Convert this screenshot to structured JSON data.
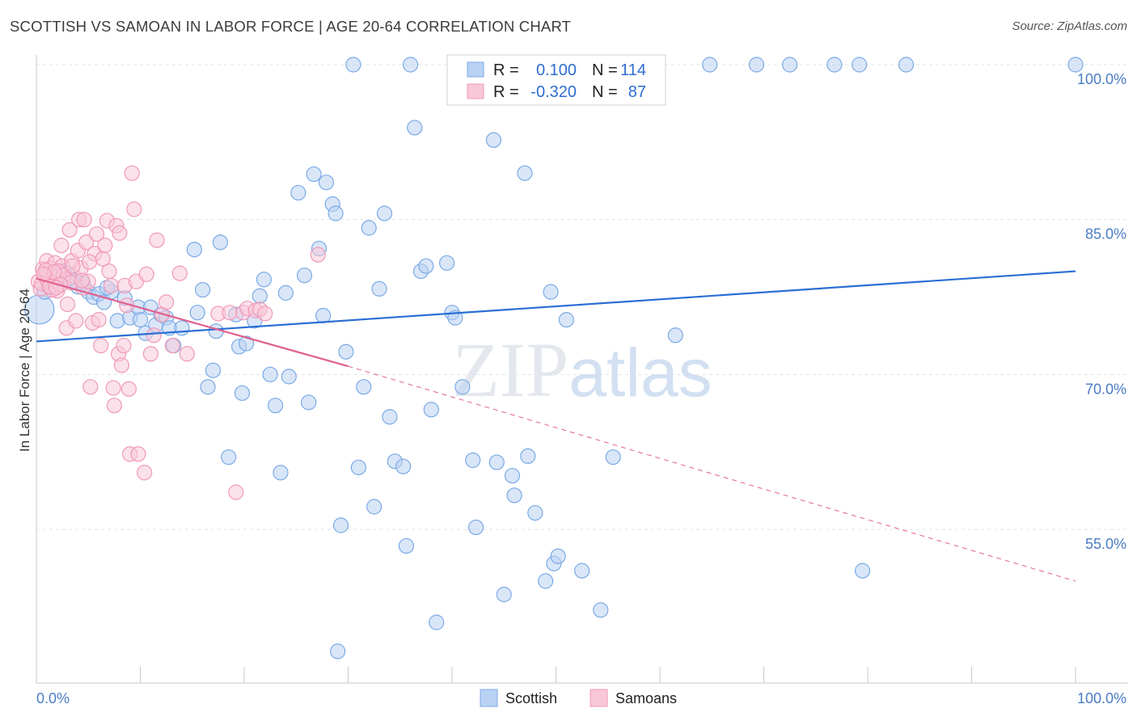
{
  "chart_data": {
    "type": "scatter",
    "title": "SCOTTISH VS SAMOAN IN LABOR FORCE | AGE 20-64 CORRELATION CHART",
    "source": "Source: ZipAtlas.com",
    "xlabel": "",
    "ylabel": "In Labor Force | Age 20-64",
    "xlim": [
      0,
      100
    ],
    "ylim": [
      42,
      102
    ],
    "x_tick_labels": [
      "0.0%",
      "100.0%"
    ],
    "y_ticks": [
      {
        "value": 100,
        "label": "100.0%"
      },
      {
        "value": 85,
        "label": "85.0%"
      },
      {
        "value": 70,
        "label": "70.0%"
      },
      {
        "value": 55,
        "label": "55.0%"
      }
    ],
    "watermark": "ZIPatlas",
    "legend": {
      "rows": [
        {
          "series": "Scottish",
          "r_label": "R =",
          "r_value": "0.100",
          "n_label": "N =",
          "n_value": "114"
        },
        {
          "series": "Samoans",
          "r_label": "R =",
          "r_value": "-0.320",
          "n_label": "N =",
          "n_value": "87"
        }
      ]
    },
    "series": [
      {
        "name": "Scottish",
        "color": "#7aaae6",
        "fill": "#b9d1f2",
        "line_color": "#2a6fd4",
        "trend": {
          "x0": 0,
          "y0": 73.2,
          "x1": 100,
          "y1": 80.0
        },
        "points": [
          [
            0.3,
            76.3
          ],
          [
            0.8,
            78.0
          ],
          [
            1.2,
            78.5
          ],
          [
            1.5,
            79.2
          ],
          [
            2.0,
            79.5
          ],
          [
            2.5,
            80.0
          ],
          [
            3.0,
            79.8
          ],
          [
            3.5,
            79.0
          ],
          [
            4.0,
            78.5
          ],
          [
            4.5,
            78.8
          ],
          [
            5.0,
            78.0
          ],
          [
            5.5,
            77.5
          ],
          [
            6.0,
            77.8
          ],
          [
            6.5,
            77.0
          ],
          [
            7.2,
            78.0
          ],
          [
            7.8,
            75.2
          ],
          [
            8.5,
            77.4
          ],
          [
            9.0,
            75.5
          ],
          [
            9.8,
            76.5
          ],
          [
            10.0,
            75.3
          ],
          [
            10.5,
            74.0
          ],
          [
            11.0,
            76.5
          ],
          [
            11.5,
            74.8
          ],
          [
            12.0,
            75.8
          ],
          [
            12.5,
            75.5
          ],
          [
            12.8,
            74.5
          ],
          [
            13.2,
            72.8
          ],
          [
            14.0,
            74.5
          ],
          [
            15.2,
            82.1
          ],
          [
            15.5,
            76.0
          ],
          [
            16.0,
            78.2
          ],
          [
            16.5,
            68.8
          ],
          [
            17.0,
            70.4
          ],
          [
            17.3,
            74.2
          ],
          [
            17.7,
            82.8
          ],
          [
            18.5,
            62.0
          ],
          [
            19.2,
            75.8
          ],
          [
            19.5,
            72.7
          ],
          [
            19.8,
            68.2
          ],
          [
            20.2,
            73.0
          ],
          [
            21.0,
            75.2
          ],
          [
            21.5,
            77.6
          ],
          [
            21.9,
            79.2
          ],
          [
            22.5,
            70.0
          ],
          [
            23.0,
            67.0
          ],
          [
            23.5,
            60.5
          ],
          [
            24.0,
            77.9
          ],
          [
            24.3,
            69.8
          ],
          [
            25.2,
            87.6
          ],
          [
            25.8,
            79.6
          ],
          [
            26.2,
            67.3
          ],
          [
            26.7,
            89.4
          ],
          [
            27.2,
            82.2
          ],
          [
            27.6,
            75.7
          ],
          [
            27.9,
            88.6
          ],
          [
            28.5,
            86.5
          ],
          [
            28.8,
            85.6
          ],
          [
            29.0,
            43.2
          ],
          [
            29.3,
            55.4
          ],
          [
            29.8,
            72.2
          ],
          [
            30.5,
            100.0
          ],
          [
            31.0,
            61.0
          ],
          [
            31.5,
            68.8
          ],
          [
            32.0,
            84.2
          ],
          [
            32.5,
            57.2
          ],
          [
            33.0,
            78.3
          ],
          [
            33.5,
            85.6
          ],
          [
            34.0,
            65.9
          ],
          [
            34.5,
            61.6
          ],
          [
            35.3,
            61.1
          ],
          [
            35.6,
            53.4
          ],
          [
            36.0,
            100.0
          ],
          [
            36.4,
            93.9
          ],
          [
            37.0,
            80.0
          ],
          [
            37.5,
            80.5
          ],
          [
            38.0,
            66.6
          ],
          [
            38.5,
            46.0
          ],
          [
            39.5,
            80.8
          ],
          [
            40.0,
            76.0
          ],
          [
            40.3,
            75.5
          ],
          [
            41.0,
            68.8
          ],
          [
            42.0,
            61.7
          ],
          [
            42.3,
            55.2
          ],
          [
            44.0,
            92.7
          ],
          [
            44.3,
            61.5
          ],
          [
            45.0,
            48.7
          ],
          [
            45.8,
            60.2
          ],
          [
            46.0,
            58.3
          ],
          [
            47.0,
            89.5
          ],
          [
            47.3,
            62.1
          ],
          [
            48.0,
            56.6
          ],
          [
            49.0,
            50.0
          ],
          [
            49.5,
            78.0
          ],
          [
            49.8,
            51.7
          ],
          [
            50.2,
            52.4
          ],
          [
            51.0,
            75.3
          ],
          [
            52.5,
            51.0
          ],
          [
            52.7,
            100.0
          ],
          [
            54.3,
            47.2
          ],
          [
            55.0,
            100.0
          ],
          [
            55.5,
            62.0
          ],
          [
            57.8,
            100.0
          ],
          [
            61.5,
            73.8
          ],
          [
            64.8,
            100.0
          ],
          [
            69.3,
            100.0
          ],
          [
            72.5,
            100.0
          ],
          [
            76.8,
            100.0
          ],
          [
            79.2,
            100.0
          ],
          [
            79.5,
            51.0
          ],
          [
            83.7,
            100.0
          ],
          [
            100.0,
            100.0
          ],
          [
            1.8,
            78.9
          ],
          [
            3.2,
            79.3
          ],
          [
            6.8,
            78.4
          ]
        ]
      },
      {
        "name": "Samoans",
        "color": "#f099b8",
        "fill": "#f8c8d8",
        "line_color": "#e0608e",
        "trend": {
          "x0": 0,
          "y0": 79.3,
          "x1": 30,
          "y1": 70.8
        },
        "trend_dashed": {
          "x0": 30,
          "y0": 70.8,
          "x1": 100,
          "y1": 50.0
        },
        "points": [
          [
            0.2,
            79.0
          ],
          [
            0.4,
            78.3
          ],
          [
            0.6,
            80.2
          ],
          [
            0.8,
            79.5
          ],
          [
            1.0,
            81.0
          ],
          [
            1.2,
            78.6
          ],
          [
            1.4,
            80.3
          ],
          [
            1.6,
            79.4
          ],
          [
            1.8,
            80.8
          ],
          [
            2.0,
            78.1
          ],
          [
            2.2,
            79.8
          ],
          [
            2.4,
            82.5
          ],
          [
            2.5,
            80.5
          ],
          [
            2.7,
            79.2
          ],
          [
            2.9,
            74.5
          ],
          [
            3.0,
            76.8
          ],
          [
            3.2,
            84.0
          ],
          [
            3.4,
            81.0
          ],
          [
            3.6,
            79.5
          ],
          [
            3.8,
            75.2
          ],
          [
            4.0,
            82.0
          ],
          [
            4.1,
            85.0
          ],
          [
            4.3,
            80.3
          ],
          [
            4.5,
            78.4
          ],
          [
            4.6,
            85.0
          ],
          [
            4.8,
            82.8
          ],
          [
            5.0,
            79.0
          ],
          [
            5.2,
            68.8
          ],
          [
            5.4,
            75.0
          ],
          [
            5.6,
            81.7
          ],
          [
            5.8,
            83.6
          ],
          [
            6.0,
            75.3
          ],
          [
            6.2,
            72.8
          ],
          [
            6.4,
            81.2
          ],
          [
            6.6,
            82.5
          ],
          [
            6.8,
            84.9
          ],
          [
            7.0,
            80.0
          ],
          [
            7.2,
            78.6
          ],
          [
            7.4,
            68.7
          ],
          [
            7.5,
            67.0
          ],
          [
            7.7,
            84.4
          ],
          [
            7.9,
            72.0
          ],
          [
            8.0,
            83.7
          ],
          [
            8.2,
            70.9
          ],
          [
            8.4,
            72.8
          ],
          [
            8.5,
            78.6
          ],
          [
            8.7,
            76.7
          ],
          [
            8.9,
            68.6
          ],
          [
            9.0,
            62.3
          ],
          [
            9.2,
            89.5
          ],
          [
            9.4,
            86.0
          ],
          [
            9.6,
            79.0
          ],
          [
            9.8,
            62.3
          ],
          [
            10.4,
            60.5
          ],
          [
            10.6,
            79.7
          ],
          [
            11.0,
            72.0
          ],
          [
            11.3,
            73.8
          ],
          [
            11.6,
            83.0
          ],
          [
            12.1,
            75.8
          ],
          [
            12.5,
            77.0
          ],
          [
            13.1,
            72.8
          ],
          [
            13.8,
            79.8
          ],
          [
            14.5,
            72.0
          ],
          [
            17.5,
            75.9
          ],
          [
            18.6,
            76.0
          ],
          [
            19.2,
            58.6
          ],
          [
            19.9,
            76.0
          ],
          [
            20.3,
            76.4
          ],
          [
            21.1,
            76.2
          ],
          [
            21.5,
            76.3
          ],
          [
            22.0,
            75.9
          ],
          [
            27.1,
            81.6
          ],
          [
            0.5,
            78.8
          ],
          [
            1.1,
            79.1
          ],
          [
            1.5,
            78.2
          ],
          [
            2.1,
            80.0
          ],
          [
            2.6,
            79.6
          ],
          [
            3.3,
            78.9
          ],
          [
            0.9,
            80.1
          ],
          [
            1.3,
            78.5
          ],
          [
            1.7,
            79.9
          ],
          [
            2.3,
            78.7
          ],
          [
            3.5,
            80.5
          ],
          [
            4.4,
            79.1
          ],
          [
            5.1,
            80.9
          ],
          [
            0.7,
            79.7
          ],
          [
            1.9,
            78.4
          ]
        ]
      }
    ]
  },
  "bottom_legend": [
    {
      "label": "Scottish"
    },
    {
      "label": "Samoans"
    }
  ]
}
